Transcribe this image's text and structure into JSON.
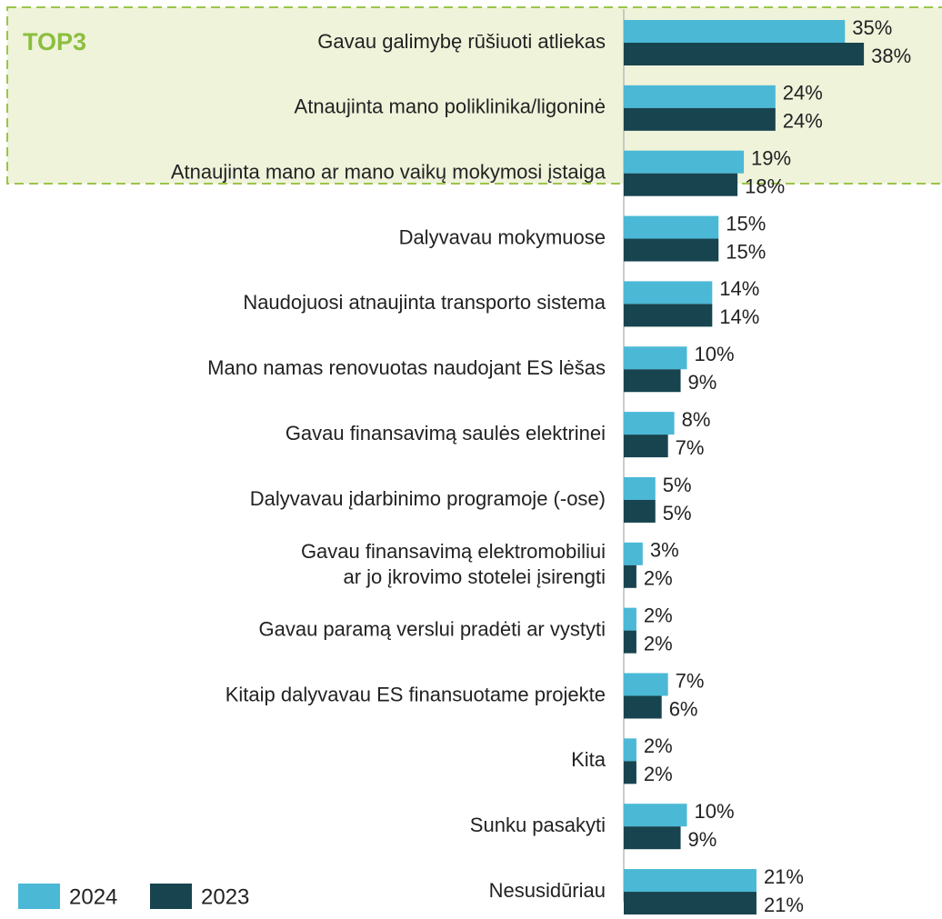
{
  "chart_data": {
    "type": "bar",
    "orientation": "horizontal",
    "annotation": "TOP3",
    "categories": [
      "Gavau galimybę rūšiuoti atliekas",
      "Atnaujinta mano poliklinika/ligoninė",
      "Atnaujinta mano ar mano vaikų mokymosi įstaiga",
      "Dalyvavau mokymuose",
      "Naudojuosi atnaujinta transporto sistema",
      "Mano namas renovuotas naudojant ES lėšas",
      "Gavau finansavimą saulės elektrinei",
      "Dalyvavau įdarbinimo programoje (-ose)",
      "Gavau finansavimą elektromobiliui\nar jo įkrovimo stotelei įsirengti",
      "Gavau paramą verslui pradėti ar vystyti",
      "Kitaip dalyvavau ES finansuotame projekte",
      "Kita",
      "Sunku pasakyti",
      "Nesusidūriau"
    ],
    "series": [
      {
        "name": "2024",
        "color": "#4bb8d6",
        "values": [
          35,
          24,
          19,
          15,
          14,
          10,
          8,
          5,
          3,
          2,
          7,
          2,
          10,
          21
        ]
      },
      {
        "name": "2023",
        "color": "#17444f",
        "values": [
          38,
          24,
          18,
          15,
          14,
          9,
          7,
          5,
          2,
          2,
          6,
          2,
          9,
          21
        ]
      }
    ],
    "value_labels": [
      [
        "35%",
        "24%",
        "19%",
        "15%",
        "14%",
        "10%",
        "8%",
        "5%",
        "3%",
        "2%",
        "7%",
        "2%",
        "10%",
        "21%"
      ],
      [
        "38%",
        "24%",
        "18%",
        "15%",
        "14%",
        "9%",
        "7%",
        "5%",
        "2%",
        "2%",
        "6%",
        "2%",
        "9%",
        "21%"
      ]
    ],
    "legend": "bottom-left"
  }
}
